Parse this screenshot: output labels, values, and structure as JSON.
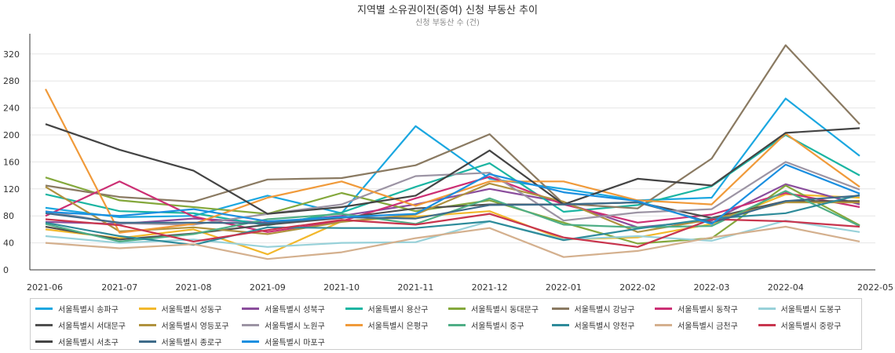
{
  "chart_data": {
    "type": "line",
    "title": "지역별 소유권이전(증여) 신청 부동산 추이",
    "subtitle": "신청 부동산 수 (건)",
    "xlabel": "",
    "ylabel": "",
    "ylim": [
      0,
      350
    ],
    "yticks": [
      0,
      40,
      80,
      120,
      160,
      200,
      240,
      280,
      320
    ],
    "grid": true,
    "legend_position": "bottom",
    "x": [
      "2021-06",
      "2021-07",
      "2021-08",
      "2021-09",
      "2021-10",
      "2021-11",
      "2021-12",
      "2022-01",
      "2022-02",
      "2022-03",
      "2022-04",
      "2022-05"
    ],
    "series": [
      {
        "name": "서울특별시 송파구",
        "color": "#1ba7e0",
        "values": [
          92,
          78,
          80,
          110,
          84,
          213,
          135,
          120,
          103,
          107,
          254,
          169
        ]
      },
      {
        "name": "서울특별시 성동구",
        "color": "#f2b82c",
        "values": [
          60,
          47,
          60,
          23,
          72,
          79,
          87,
          45,
          48,
          68,
          112,
          107
        ]
      },
      {
        "name": "서울특별시 성북구",
        "color": "#8a4d9c",
        "values": [
          71,
          68,
          76,
          70,
          80,
          97,
          120,
          100,
          63,
          73,
          127,
          97
        ]
      },
      {
        "name": "서울특별시 용산구",
        "color": "#1bb5a2",
        "values": [
          112,
          87,
          84,
          66,
          85,
          123,
          158,
          86,
          96,
          124,
          200,
          140
        ]
      },
      {
        "name": "서울특별시 동대문구",
        "color": "#84a83c",
        "values": [
          137,
          103,
          93,
          83,
          114,
          87,
          103,
          70,
          39,
          47,
          125,
          66
        ]
      },
      {
        "name": "서울특별시 강남구",
        "color": "#8a7a62",
        "values": [
          125,
          108,
          101,
          134,
          136,
          155,
          201,
          98,
          91,
          165,
          333,
          216
        ]
      },
      {
        "name": "서울특별시 동작구",
        "color": "#cc2f74",
        "values": [
          80,
          131,
          79,
          56,
          72,
          106,
          138,
          97,
          70,
          82,
          114,
          93
        ]
      },
      {
        "name": "서울특별시 도봉구",
        "color": "#98d1d9",
        "values": [
          50,
          40,
          45,
          34,
          40,
          41,
          72,
          45,
          50,
          43,
          73,
          56
        ]
      },
      {
        "name": "서울특별시 서대문구",
        "color": "#4f4f4f",
        "values": [
          64,
          45,
          54,
          67,
          77,
          91,
          97,
          97,
          100,
          77,
          102,
          102
        ]
      },
      {
        "name": "서울특별시 영등포구",
        "color": "#b0923e",
        "values": [
          123,
          57,
          63,
          53,
          71,
          82,
          128,
          101,
          56,
          75,
          100,
          100
        ]
      },
      {
        "name": "서울특별시 노원구",
        "color": "#9c94a4",
        "values": [
          87,
          69,
          67,
          83,
          97,
          139,
          144,
          73,
          85,
          90,
          160,
          119
        ]
      },
      {
        "name": "서울특별시 은평구",
        "color": "#f09a3a",
        "values": [
          268,
          55,
          68,
          107,
          131,
          95,
          131,
          131,
          103,
          97,
          202,
          123
        ]
      },
      {
        "name": "서울특별시 중구",
        "color": "#4fae86",
        "values": [
          68,
          42,
          53,
          75,
          83,
          68,
          106,
          67,
          63,
          65,
          117,
          65
        ]
      },
      {
        "name": "서울특별시 양천구",
        "color": "#2e8b9a",
        "values": [
          70,
          50,
          37,
          63,
          62,
          62,
          72,
          44,
          61,
          76,
          84,
          111
        ]
      },
      {
        "name": "서울특별시 금천구",
        "color": "#d4b08e",
        "values": [
          40,
          32,
          38,
          16,
          26,
          47,
          62,
          19,
          28,
          48,
          64,
          42
        ]
      },
      {
        "name": "서울특별시 중랑구",
        "color": "#c8354e",
        "values": [
          75,
          66,
          42,
          59,
          74,
          67,
          83,
          48,
          34,
          75,
          72,
          64
        ]
      },
      {
        "name": "서울특별시 서초구",
        "color": "#444444",
        "values": [
          216,
          178,
          147,
          83,
          93,
          110,
          177,
          97,
          135,
          125,
          203,
          210
        ]
      },
      {
        "name": "서울특별시 종로구",
        "color": "#3e6b8a",
        "values": [
          84,
          70,
          70,
          69,
          78,
          76,
          96,
          97,
          100,
          70,
          102,
          110
        ]
      },
      {
        "name": "서울특별시 마포구",
        "color": "#1b8fe0",
        "values": [
          86,
          80,
          90,
          72,
          78,
          83,
          142,
          115,
          102,
          68,
          156,
          113
        ]
      }
    ]
  }
}
